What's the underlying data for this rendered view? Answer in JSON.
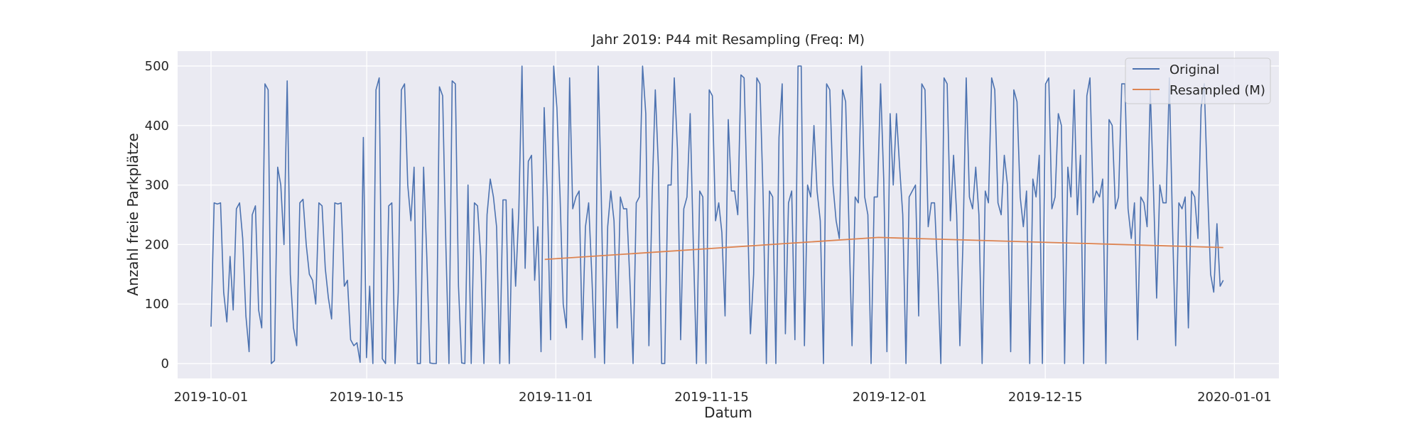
{
  "chart_data": {
    "type": "line",
    "title": "Jahr 2019: P44 mit Resampling (Freq: M)",
    "xlabel": "Datum",
    "ylabel": "Anzahl freie Parkplätze",
    "x_axis_type": "date",
    "xlim": [
      "2019-09-28",
      "2020-01-05"
    ],
    "ylim": [
      -25,
      525
    ],
    "x_ticks": [
      "2019-10-01",
      "2019-10-15",
      "2019-11-01",
      "2019-11-15",
      "2019-12-01",
      "2019-12-15",
      "2020-01-01"
    ],
    "y_ticks": [
      0,
      100,
      200,
      300,
      400,
      500
    ],
    "grid": true,
    "legend_position": "top-right",
    "colors": {
      "background": "#eaeaf2",
      "grid": "#ffffff",
      "original": "#4c72b0",
      "resampled": "#dd8452"
    },
    "series": [
      {
        "name": "Original",
        "description_of_values": "hourly free parking spaces, strongly oscillating between about 0 and 500",
        "x_start": "2019-10-01",
        "x_end": "2019-12-31",
        "values": [
          62,
          270,
          268,
          270,
          120,
          70,
          180,
          90,
          260,
          270,
          210,
          80,
          20,
          250,
          265,
          90,
          60,
          470,
          460,
          0,
          5,
          330,
          300,
          200,
          475,
          150,
          60,
          30,
          270,
          276,
          200,
          150,
          140,
          100,
          270,
          265,
          160,
          110,
          75,
          270,
          268,
          270,
          130,
          140,
          40,
          30,
          35,
          2,
          380,
          10,
          130,
          0,
          460,
          480,
          8,
          0,
          265,
          270,
          0,
          120,
          460,
          470,
          300,
          240,
          330,
          0,
          0,
          330,
          180,
          1,
          0,
          0,
          465,
          450,
          200,
          0,
          475,
          470,
          130,
          1,
          0,
          300,
          0,
          270,
          265,
          180,
          0,
          250,
          310,
          280,
          230,
          0,
          275,
          275,
          0,
          260,
          130,
          255,
          500,
          160,
          340,
          350,
          140,
          230,
          20,
          430,
          280,
          40,
          500,
          430,
          280,
          100,
          60,
          480,
          260,
          280,
          290,
          40,
          230,
          270,
          150,
          10,
          500,
          280,
          0,
          230,
          290,
          240,
          60,
          280,
          260,
          260,
          140,
          0,
          270,
          280,
          500,
          420,
          30,
          280,
          460,
          330,
          0,
          0,
          300,
          300,
          480,
          360,
          40,
          260,
          280,
          420,
          200,
          0,
          290,
          280,
          0,
          460,
          450,
          240,
          270,
          220,
          80,
          410,
          290,
          290,
          250,
          485,
          480,
          270,
          50,
          150,
          480,
          470,
          280,
          0,
          290,
          280,
          0,
          380,
          470,
          50,
          270,
          290,
          40,
          500,
          500,
          30,
          300,
          280,
          400,
          290,
          240,
          0,
          470,
          460,
          300,
          240,
          210,
          460,
          440,
          240,
          30,
          280,
          270,
          500,
          280,
          250,
          0,
          280,
          280,
          470,
          310,
          20,
          420,
          300,
          420,
          330,
          250,
          0,
          280,
          290,
          300,
          80,
          470,
          460,
          230,
          270,
          270,
          150,
          0,
          480,
          470,
          240,
          350,
          250,
          30,
          210,
          480,
          280,
          260,
          330,
          250,
          0,
          290,
          270,
          480,
          460,
          270,
          250,
          350,
          300,
          20,
          460,
          440,
          280,
          230,
          290,
          0,
          310,
          280,
          350,
          0,
          470,
          480,
          260,
          280,
          420,
          400,
          0,
          330,
          280,
          460,
          250,
          350,
          0,
          450,
          480,
          270,
          290,
          280,
          310,
          0,
          410,
          400,
          260,
          280,
          470,
          470,
          260,
          210,
          270,
          40,
          280,
          270,
          230,
          460,
          290,
          110,
          300,
          270,
          270,
          480,
          230,
          30,
          270,
          260,
          280,
          60,
          290,
          280,
          210,
          430,
          470,
          300,
          150,
          120,
          235,
          130,
          140
        ]
      },
      {
        "name": "Resampled (M)",
        "x": [
          "2019-10-31",
          "2019-11-30",
          "2019-12-31"
        ],
        "values": [
          175,
          212,
          195
        ]
      }
    ]
  }
}
